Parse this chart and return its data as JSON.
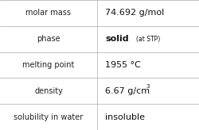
{
  "rows": [
    {
      "label": "molar mass",
      "value": "74.692 g/mol",
      "value_extra": null,
      "superscript": null
    },
    {
      "label": "phase",
      "value": "solid",
      "value_extra": "(at STP)",
      "superscript": null
    },
    {
      "label": "melting point",
      "value": "1955 °C",
      "value_extra": null,
      "superscript": null
    },
    {
      "label": "density",
      "value": "6.67 g/cm",
      "value_extra": null,
      "superscript": "3"
    },
    {
      "label": "solubility in water",
      "value": "insoluble",
      "value_extra": null,
      "superscript": null
    }
  ],
  "col_split": 0.488,
  "background": "#ffffff",
  "border_color": "#aaaaaa",
  "label_fontsize": 7.0,
  "value_fontsize": 8.0,
  "extra_fontsize": 5.5,
  "super_fontsize": 5.0,
  "label_color": "#222222",
  "value_color": "#111111"
}
